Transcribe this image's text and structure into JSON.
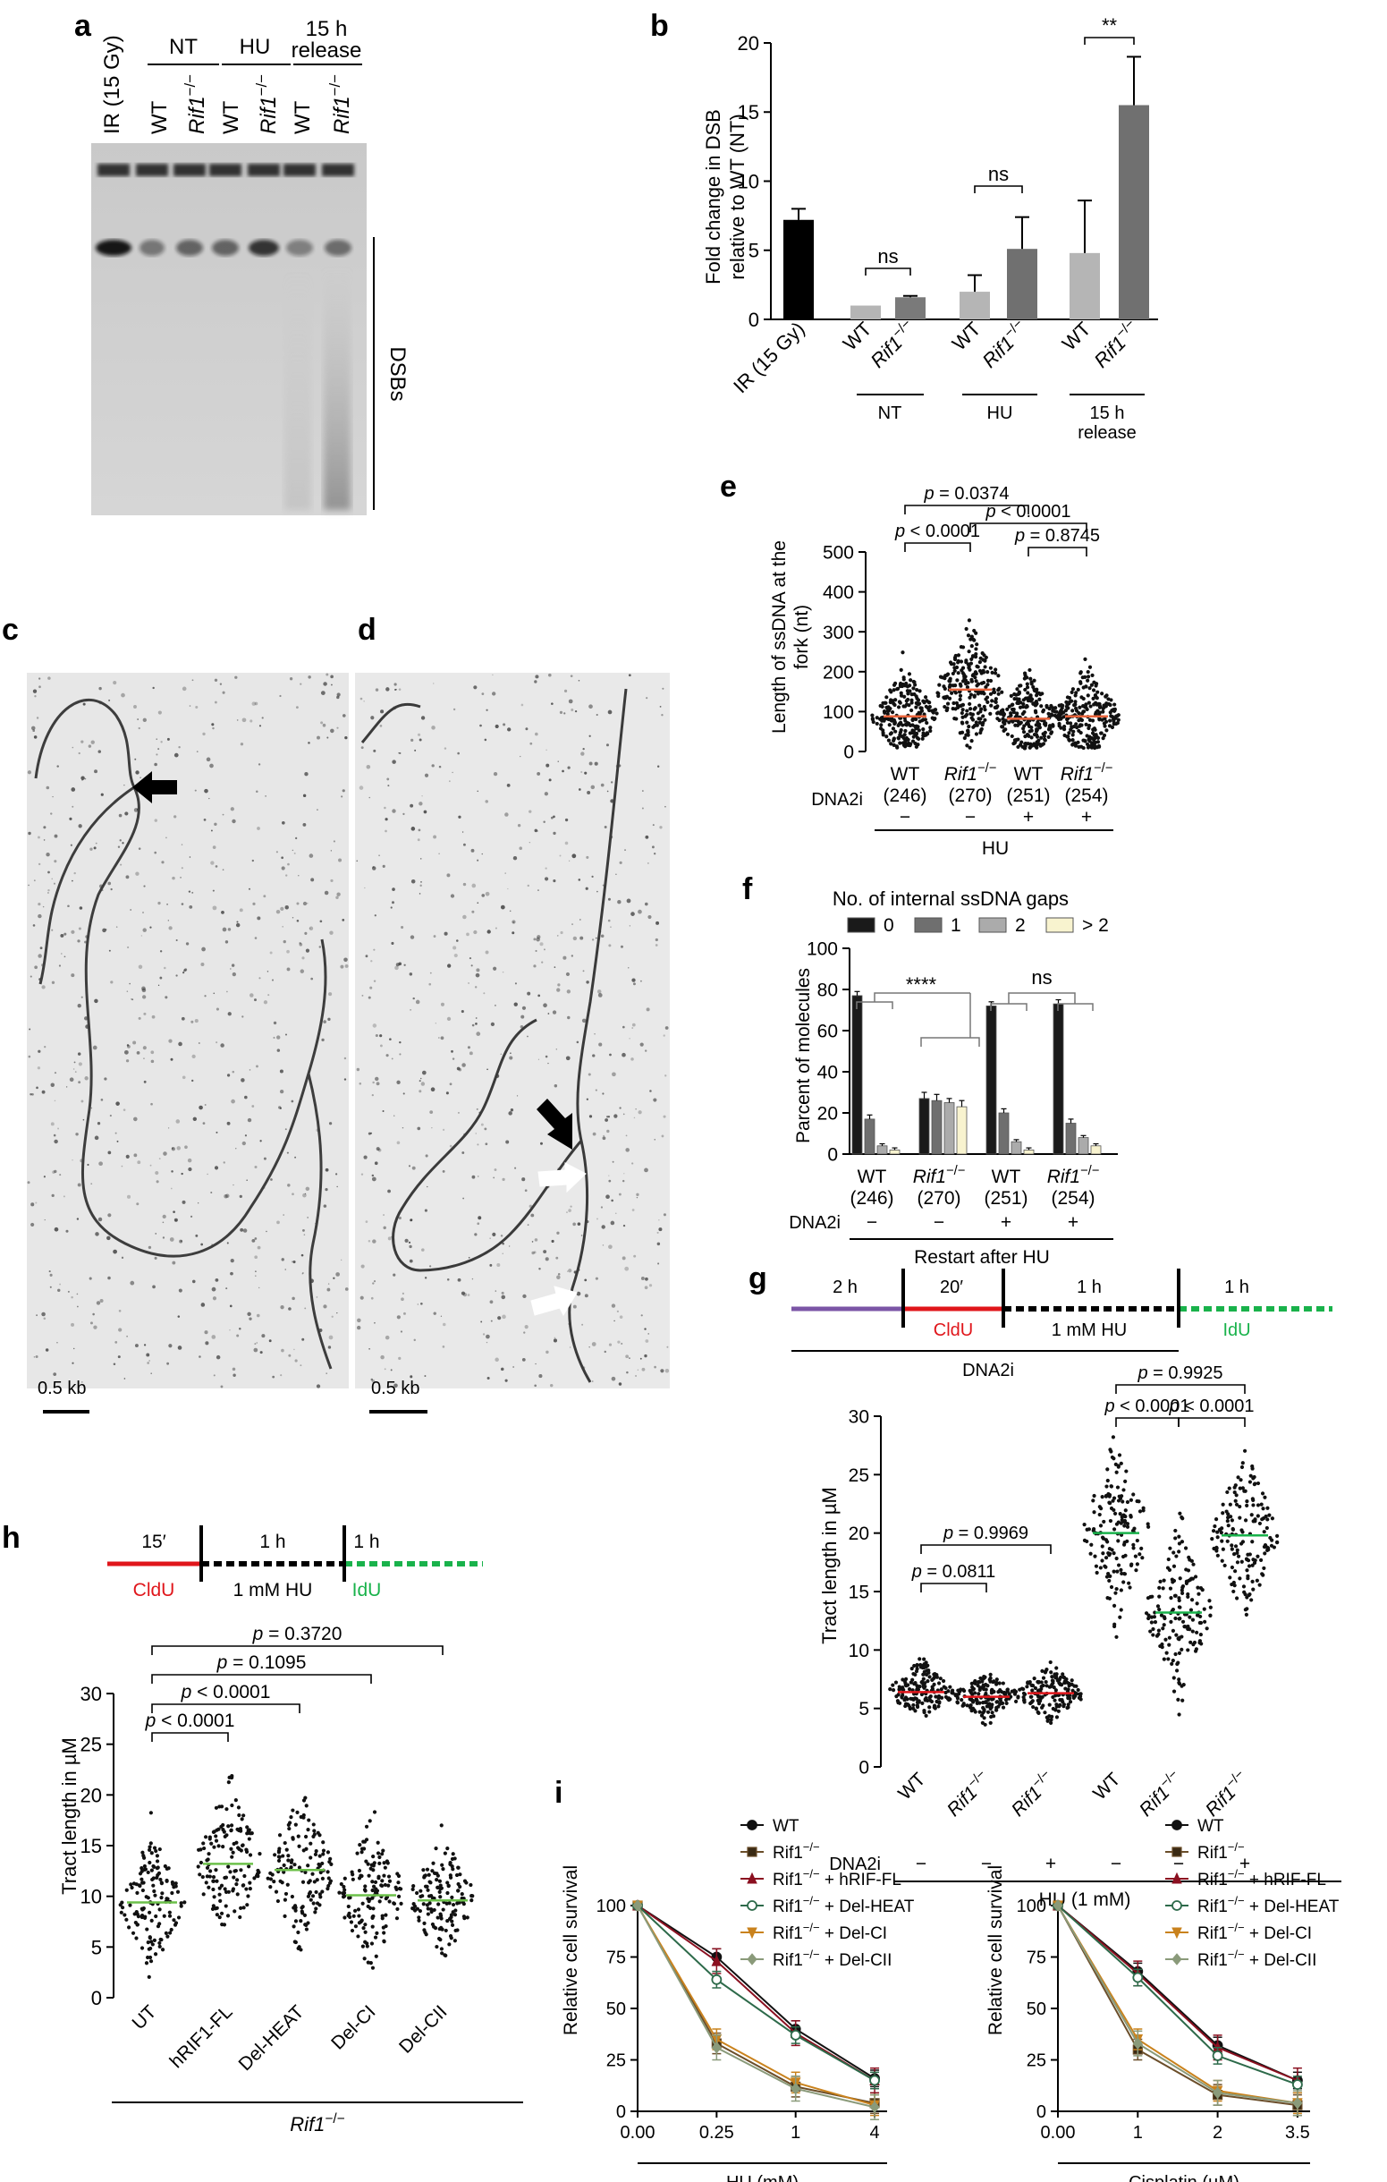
{
  "panels": {
    "a": {
      "letter": "a",
      "lane_groups": [
        "NT",
        "HU",
        "15 h",
        "release"
      ],
      "lanes": [
        "IR (15 Gy)",
        "WT",
        "Rif1",
        "WT",
        "Rif1",
        "WT",
        "Rif1"
      ],
      "ko_sup": "−/−",
      "side_label": "DSBs"
    },
    "b": {
      "letter": "b",
      "ylabel_1": "Fold change in DSB",
      "ylabel_2": "relative to WT (NT)",
      "sig": [
        "ns",
        "ns",
        "**"
      ],
      "groups": [
        "NT",
        "HU",
        "15 h",
        "release"
      ]
    },
    "c": {
      "letter": "c",
      "scale": "0.5 kb"
    },
    "d": {
      "letter": "d",
      "scale": "0.5 kb"
    },
    "e": {
      "letter": "e",
      "ylabel_1": "Length of ssDNA at the",
      "ylabel_2": "fork (nt)",
      "pvals": [
        "p = 0.0374",
        "p < 0.0001",
        "p < 0.0001",
        "p = 0.8745"
      ],
      "counts": [
        "(246)",
        "(270)",
        "(251)",
        "(254)"
      ],
      "treat_label": "DNA2i",
      "treat": [
        "−",
        "−",
        "+",
        "+"
      ],
      "group": "HU"
    },
    "f": {
      "letter": "f",
      "legend_title": "No. of internal ssDNA gaps",
      "legend": [
        "0",
        "1",
        "2",
        "> 2"
      ],
      "ylabel": "Parcent of molecules",
      "sig": [
        "****",
        "ns"
      ],
      "counts": [
        "(246)",
        "(270)",
        "(251)",
        "(254)"
      ],
      "treat_label": "DNA2i",
      "treat": [
        "−",
        "−",
        "+",
        "+"
      ],
      "group": "Restart after HU"
    },
    "g": {
      "letter": "g",
      "scheme": [
        "2 h",
        "20′",
        "CldU",
        "1 h",
        "1 mM HU",
        "1 h",
        "IdU",
        "DNA2i"
      ],
      "ylabel": "Tract length in µM",
      "pvals": [
        "p = 0.9969",
        "p = 0.0811",
        "p = 0.9925",
        "p < 0.0001",
        "p < 0.0001"
      ],
      "treat_label": "DNA2i",
      "treat": [
        "−",
        "−",
        "+",
        "−",
        "−",
        "+"
      ],
      "group": "HU (1 mM)"
    },
    "h": {
      "letter": "h",
      "scheme": [
        "15′",
        "CldU",
        "1 h",
        "1 mM HU",
        "1 h",
        "IdU"
      ],
      "ylabel": "Tract length in µM",
      "pvals": [
        "p = 0.3720",
        "p = 0.1095",
        "p < 0.0001",
        "p < 0.0001"
      ],
      "group": "Rif1"
    },
    "i": {
      "letter": "i",
      "ylabel": "Relative cell survival",
      "legend": [
        "WT",
        "Rif1",
        "Rif1",
        "Rif1",
        "Rif1",
        "Rif1"
      ],
      "legend_suffix": [
        "",
        "",
        " + hRIF-FL",
        " + Del-HEAT",
        " + Del-CI",
        " + Del-CII"
      ]
    }
  },
  "chart_data": [
    {
      "panel": "b",
      "type": "bar",
      "categories": [
        "IR (15 Gy)",
        "WT",
        "Rif1−/−",
        "WT",
        "Rif1−/−",
        "WT",
        "Rif1−/−"
      ],
      "values": [
        7.2,
        1.0,
        1.6,
        2.0,
        5.1,
        4.8,
        15.5
      ],
      "errors": [
        0.8,
        0,
        0.1,
        1.2,
        2.3,
        3.8,
        3.5
      ],
      "colors": [
        "#000000",
        "#b5b5b5",
        "#7a7a7a",
        "#b5b5b5",
        "#707070",
        "#b5b5b5",
        "#707070"
      ],
      "ylim": [
        0,
        20
      ],
      "yticks": [
        0,
        5,
        10,
        15,
        20
      ]
    },
    {
      "panel": "e",
      "type": "scatter",
      "categories": [
        "WT",
        "Rif1−/−",
        "WT",
        "Rif1−/−"
      ],
      "medians": [
        88,
        155,
        82,
        88
      ],
      "ylim": [
        0,
        500
      ],
      "yticks": [
        0,
        100,
        200,
        300,
        400,
        500
      ]
    },
    {
      "panel": "f",
      "type": "bar",
      "categories": [
        "WT",
        "Rif1−/−",
        "WT",
        "Rif1−/−"
      ],
      "series": [
        {
          "name": "0",
          "values": [
            77,
            27,
            72,
            73
          ],
          "errors": [
            2,
            3,
            2,
            2
          ],
          "color": "#1a1a1a"
        },
        {
          "name": "1",
          "values": [
            17,
            26,
            20,
            15
          ],
          "errors": [
            2,
            3,
            2,
            2
          ],
          "color": "#6f6f6f"
        },
        {
          "name": "2",
          "values": [
            4,
            25,
            6,
            8
          ],
          "errors": [
            1,
            2,
            1,
            1
          ],
          "color": "#ababab"
        },
        {
          "name": "> 2",
          "values": [
            2,
            23,
            2,
            4
          ],
          "errors": [
            1,
            3,
            1,
            1
          ],
          "color": "#f8f3cf"
        }
      ],
      "ylim": [
        0,
        100
      ],
      "yticks": [
        0,
        20,
        40,
        60,
        80,
        100
      ]
    },
    {
      "panel": "g",
      "type": "scatter",
      "categories": [
        "WT",
        "Rif1−/−",
        "Rif1−/−",
        "WT",
        "Rif1−/−",
        "Rif1−/−"
      ],
      "medians": [
        6.4,
        6.0,
        6.3,
        20.0,
        13.2,
        19.8
      ],
      "ylim": [
        0,
        30
      ],
      "yticks": [
        0,
        5,
        10,
        15,
        20,
        25,
        30
      ]
    },
    {
      "panel": "h",
      "type": "scatter",
      "categories": [
        "UT",
        "hRIF1-FL",
        "Del-HEAT",
        "Del-CI",
        "Del-CII"
      ],
      "medians": [
        9.4,
        13.2,
        12.6,
        10.1,
        9.6
      ],
      "ylim": [
        0,
        30
      ],
      "yticks": [
        0,
        5,
        10,
        15,
        20,
        25,
        30
      ]
    },
    {
      "panel": "i-left",
      "type": "line",
      "xlabel": "HU (mM)",
      "x": [
        "0.00",
        "0.25",
        "1",
        "4"
      ],
      "series": [
        {
          "name": "WT",
          "values": [
            100,
            75,
            40,
            16
          ]
        },
        {
          "name": "Rif1−/−",
          "values": [
            100,
            33,
            12,
            4
          ]
        },
        {
          "name": "Rif1−/− + hRIF-FL",
          "values": [
            100,
            73,
            38,
            15
          ]
        },
        {
          "name": "Rif1−/− + Del-HEAT",
          "values": [
            100,
            64,
            37,
            15
          ]
        },
        {
          "name": "Rif1−/− + Del-CI",
          "values": [
            100,
            35,
            14,
            3
          ]
        },
        {
          "name": "Rif1−/− + Del-CII",
          "values": [
            100,
            31,
            11,
            2
          ]
        }
      ],
      "ylim": [
        0,
        100
      ],
      "yticks": [
        0,
        25,
        50,
        75,
        100
      ]
    },
    {
      "panel": "i-right",
      "type": "line",
      "xlabel": "Cisplatin (µM)",
      "x": [
        "0.00",
        "1",
        "2",
        "3.5"
      ],
      "series": [
        {
          "name": "WT",
          "values": [
            100,
            68,
            32,
            15
          ]
        },
        {
          "name": "Rif1−/−",
          "values": [
            100,
            30,
            8,
            3
          ]
        },
        {
          "name": "Rif1−/− + hRIF-FL",
          "values": [
            100,
            67,
            31,
            15
          ]
        },
        {
          "name": "Rif1−/− + Del-HEAT",
          "values": [
            100,
            65,
            27,
            13
          ]
        },
        {
          "name": "Rif1−/− + Del-CI",
          "values": [
            100,
            35,
            10,
            4
          ]
        },
        {
          "name": "Rif1−/− + Del-CII",
          "values": [
            100,
            33,
            9,
            4
          ]
        }
      ],
      "ylim": [
        0,
        100
      ],
      "yticks": [
        0,
        25,
        50,
        75,
        100
      ]
    }
  ]
}
